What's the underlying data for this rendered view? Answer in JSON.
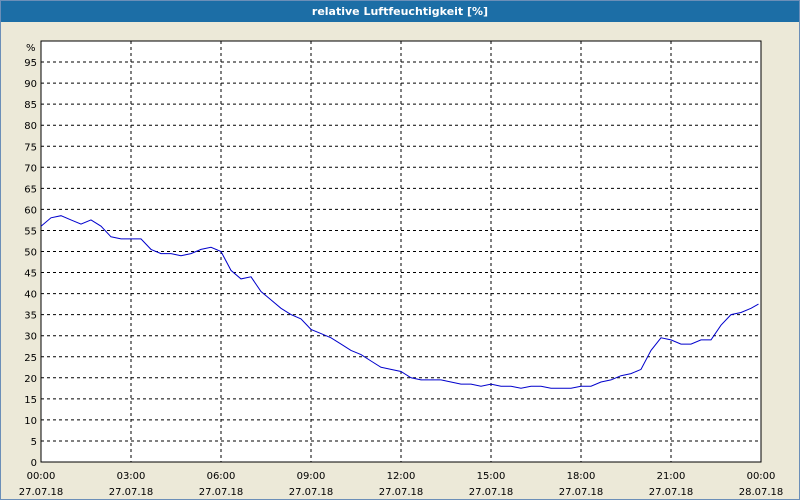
{
  "window": {
    "title": "relative Luftfeuchtigkeit [%]"
  },
  "chart_data": {
    "type": "line",
    "title": "relative Luftfeuchtigkeit [%]",
    "ylabel": "%",
    "xlabel": "",
    "ylim": [
      0,
      100
    ],
    "yticks": [
      0,
      5,
      10,
      15,
      20,
      25,
      30,
      35,
      40,
      45,
      50,
      55,
      60,
      65,
      70,
      75,
      80,
      85,
      90,
      95
    ],
    "xlim": [
      "27.07.18 00:00",
      "28.07.18 00:00"
    ],
    "xticks": [
      {
        "time": "00:00",
        "date": "27.07.18"
      },
      {
        "time": "03:00",
        "date": "27.07.18"
      },
      {
        "time": "06:00",
        "date": "27.07.18"
      },
      {
        "time": "09:00",
        "date": "27.07.18"
      },
      {
        "time": "12:00",
        "date": "27.07.18"
      },
      {
        "time": "15:00",
        "date": "27.07.18"
      },
      {
        "time": "18:00",
        "date": "27.07.18"
      },
      {
        "time": "21:00",
        "date": "27.07.18"
      },
      {
        "time": "00:00",
        "date": "28.07.18"
      }
    ],
    "grid": true,
    "line_color": "#0000cc",
    "series": [
      {
        "x": [
          "27.07.18 00:00",
          "27.07.18 00:20",
          "27.07.18 00:40",
          "27.07.18 01:00",
          "27.07.18 01:20",
          "27.07.18 01:40",
          "27.07.18 02:00",
          "27.07.18 02:20",
          "27.07.18 02:40",
          "27.07.18 03:00",
          "27.07.18 03:20",
          "27.07.18 03:40",
          "27.07.18 04:00",
          "27.07.18 04:20",
          "27.07.18 04:40",
          "27.07.18 05:00",
          "27.07.18 05:20",
          "27.07.18 05:40",
          "27.07.18 06:00",
          "27.07.18 06:20",
          "27.07.18 06:40",
          "27.07.18 07:00",
          "27.07.18 07:20",
          "27.07.18 07:40",
          "27.07.18 08:00",
          "27.07.18 08:20",
          "27.07.18 08:40",
          "27.07.18 09:00",
          "27.07.18 09:20",
          "27.07.18 09:40",
          "27.07.18 10:00",
          "27.07.18 10:20",
          "27.07.18 10:40",
          "27.07.18 11:00",
          "27.07.18 11:20",
          "27.07.18 11:40",
          "27.07.18 12:00",
          "27.07.18 12:20",
          "27.07.18 12:40",
          "27.07.18 13:00",
          "27.07.18 13:20",
          "27.07.18 13:40",
          "27.07.18 14:00",
          "27.07.18 14:20",
          "27.07.18 14:40",
          "27.07.18 15:00",
          "27.07.18 15:20",
          "27.07.18 15:40",
          "27.07.18 16:00",
          "27.07.18 16:20",
          "27.07.18 16:40",
          "27.07.18 17:00",
          "27.07.18 17:20",
          "27.07.18 17:40",
          "27.07.18 18:00",
          "27.07.18 18:20",
          "27.07.18 18:40",
          "27.07.18 19:00",
          "27.07.18 19:20",
          "27.07.18 19:40",
          "27.07.18 20:00",
          "27.07.18 20:20",
          "27.07.18 20:40",
          "27.07.18 21:00",
          "27.07.18 21:20",
          "27.07.18 21:40",
          "27.07.18 22:00",
          "27.07.18 22:20",
          "27.07.18 22:40",
          "27.07.18 23:00",
          "27.07.18 23:20",
          "27.07.18 23:40",
          "27.07.18 23:55"
        ],
        "values": [
          56,
          58,
          58.5,
          57.5,
          56.5,
          57.5,
          56,
          53.5,
          53,
          53,
          53,
          50.5,
          49.5,
          49.5,
          49,
          49.5,
          50.5,
          51,
          50,
          45.5,
          43.5,
          44,
          40.5,
          38.5,
          36.5,
          35,
          34,
          31.5,
          30.5,
          29.5,
          28,
          26.5,
          25.5,
          24,
          22.5,
          22,
          21.5,
          20,
          19.5,
          19.5,
          19.5,
          19,
          18.5,
          18.5,
          18,
          18.5,
          18,
          18,
          17.5,
          18,
          18,
          17.5,
          17.5,
          17.5,
          18,
          18,
          19,
          19.5,
          20.5,
          21,
          22,
          26.5,
          29.5,
          29,
          28,
          28,
          29,
          29,
          32.5,
          35,
          35.5,
          36.5,
          37.5
        ]
      }
    ]
  }
}
